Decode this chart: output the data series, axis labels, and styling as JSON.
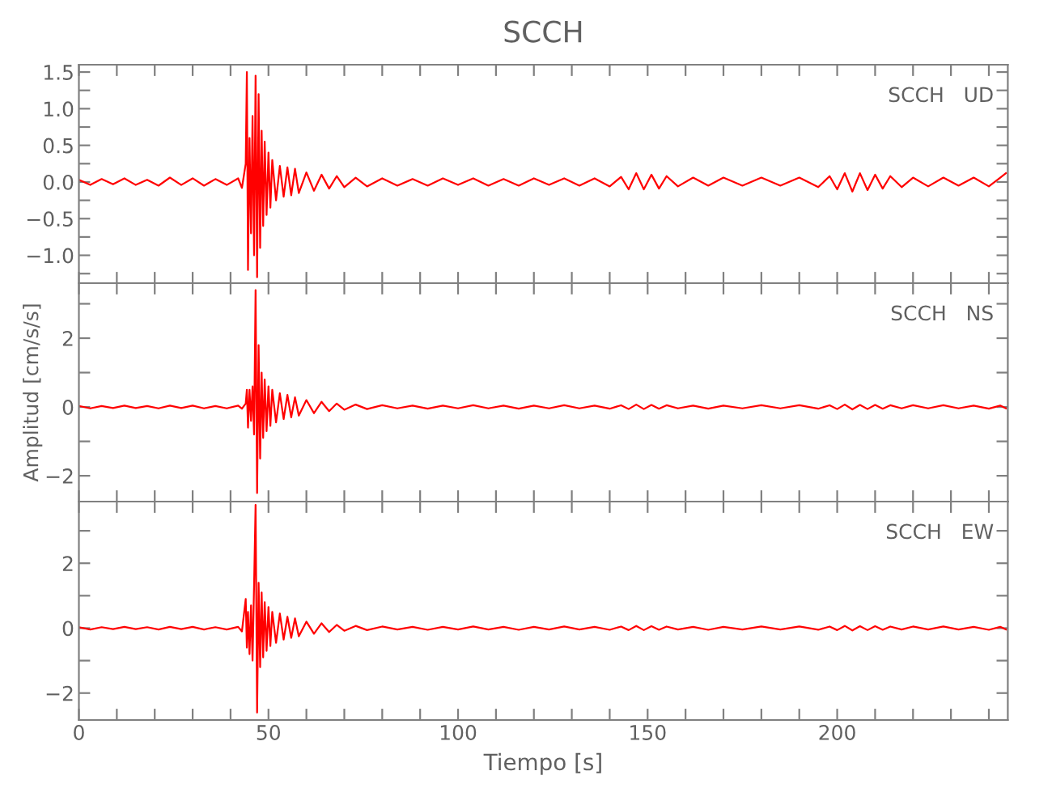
{
  "chart_data": [
    {
      "type": "line",
      "title": "SCCH",
      "annotations": [
        "SCCH   UD"
      ],
      "tick_labels": "y",
      "xlim": [
        0,
        245
      ],
      "xticks": [
        {
          "value": 0,
          "label": null
        },
        {
          "value": 10,
          "label": null
        },
        {
          "value": 20,
          "label": null
        },
        {
          "value": 30,
          "label": null
        },
        {
          "value": 40,
          "label": null
        },
        {
          "value": 50,
          "label": null
        },
        {
          "value": 60,
          "label": null
        },
        {
          "value": 70,
          "label": null
        },
        {
          "value": 80,
          "label": null
        },
        {
          "value": 90,
          "label": null
        },
        {
          "value": 100,
          "label": null
        },
        {
          "value": 110,
          "label": null
        },
        {
          "value": 120,
          "label": null
        },
        {
          "value": 130,
          "label": null
        },
        {
          "value": 140,
          "label": null
        },
        {
          "value": 150,
          "label": null
        },
        {
          "value": 160,
          "label": null
        },
        {
          "value": 170,
          "label": null
        },
        {
          "value": 180,
          "label": null
        },
        {
          "value": 190,
          "label": null
        },
        {
          "value": 200,
          "label": null
        },
        {
          "value": 210,
          "label": null
        },
        {
          "value": 220,
          "label": null
        },
        {
          "value": 230,
          "label": null
        },
        {
          "value": 240,
          "label": null
        }
      ],
      "ylim": [
        -1.38,
        1.6
      ],
      "yticks": [
        {
          "value": -1.25,
          "label": null
        },
        {
          "value": -1.0,
          "label": "−1.0"
        },
        {
          "value": -0.75,
          "label": null
        },
        {
          "value": -0.5,
          "label": "−0.5"
        },
        {
          "value": -0.25,
          "label": null
        },
        {
          "value": 0.0,
          "label": "0.0"
        },
        {
          "value": 0.25,
          "label": null
        },
        0.5,
        {
          "value": 0.75,
          "label": null
        },
        {
          "value": 1.0,
          "label": "1.0"
        },
        {
          "value": 1.25,
          "label": null
        },
        1.5
      ],
      "series": [
        {
          "color": "#ff0000",
          "x": [
            0,
            3,
            6,
            9,
            12,
            15,
            18,
            21,
            24,
            27,
            30,
            33,
            36,
            39,
            42,
            43,
            44,
            44.3,
            44.6,
            45,
            45.4,
            45.8,
            46.2,
            46.6,
            47,
            47.4,
            47.8,
            48.2,
            48.6,
            49,
            49.5,
            50,
            50.5,
            51,
            52,
            53,
            54,
            55,
            56,
            57,
            58,
            60,
            62,
            64,
            66,
            68,
            70,
            73,
            76,
            80,
            84,
            88,
            92,
            96,
            100,
            104,
            108,
            112,
            116,
            120,
            124,
            128,
            132,
            136,
            140,
            143,
            145,
            147,
            149,
            151,
            153,
            155,
            158,
            162,
            166,
            170,
            175,
            180,
            185,
            190,
            195,
            198,
            200,
            202,
            204,
            206,
            208,
            210,
            212,
            214,
            217,
            220,
            224,
            228,
            232,
            236,
            240,
            243,
            244.5
          ],
          "values": [
            0.03,
            -0.04,
            0.04,
            -0.03,
            0.05,
            -0.04,
            0.03,
            -0.05,
            0.06,
            -0.04,
            0.05,
            -0.05,
            0.04,
            -0.04,
            0.05,
            -0.08,
            0.25,
            1.5,
            -1.2,
            0.6,
            -0.7,
            0.9,
            -1.0,
            1.45,
            -1.3,
            1.2,
            -0.9,
            0.7,
            -0.6,
            0.55,
            -0.45,
            0.4,
            -0.35,
            0.3,
            -0.25,
            0.22,
            -0.2,
            0.2,
            -0.18,
            0.18,
            -0.15,
            0.13,
            -0.12,
            0.1,
            -0.09,
            0.08,
            -0.07,
            0.06,
            -0.06,
            0.05,
            -0.05,
            0.04,
            -0.05,
            0.05,
            -0.04,
            0.05,
            -0.05,
            0.04,
            -0.05,
            0.05,
            -0.04,
            0.05,
            -0.05,
            0.05,
            -0.06,
            0.07,
            -0.1,
            0.12,
            -0.1,
            0.1,
            -0.09,
            0.08,
            -0.06,
            0.06,
            -0.05,
            0.06,
            -0.05,
            0.06,
            -0.05,
            0.06,
            -0.07,
            0.08,
            -0.1,
            0.12,
            -0.13,
            0.12,
            -0.11,
            0.1,
            -0.09,
            0.08,
            -0.07,
            0.06,
            -0.06,
            0.06,
            -0.05,
            0.06,
            -0.06,
            0.06,
            0.12
          ]
        }
      ]
    },
    {
      "type": "line",
      "ylabel": "Amplitud [cm/s/s]",
      "annotations": [
        "SCCH   NS"
      ],
      "tick_labels": "y",
      "xlim": [
        0,
        245
      ],
      "xticks": [
        {
          "value": 0,
          "label": null
        },
        {
          "value": 10,
          "label": null
        },
        {
          "value": 20,
          "label": null
        },
        {
          "value": 30,
          "label": null
        },
        {
          "value": 40,
          "label": null
        },
        {
          "value": 50,
          "label": null
        },
        {
          "value": 60,
          "label": null
        },
        {
          "value": 70,
          "label": null
        },
        {
          "value": 80,
          "label": null
        },
        {
          "value": 90,
          "label": null
        },
        {
          "value": 100,
          "label": null
        },
        {
          "value": 110,
          "label": null
        },
        {
          "value": 120,
          "label": null
        },
        {
          "value": 130,
          "label": null
        },
        {
          "value": 140,
          "label": null
        },
        {
          "value": 150,
          "label": null
        },
        {
          "value": 160,
          "label": null
        },
        {
          "value": 170,
          "label": null
        },
        {
          "value": 180,
          "label": null
        },
        {
          "value": 190,
          "label": null
        },
        {
          "value": 200,
          "label": null
        },
        {
          "value": 210,
          "label": null
        },
        {
          "value": 220,
          "label": null
        },
        {
          "value": 230,
          "label": null
        },
        {
          "value": 240,
          "label": null
        }
      ],
      "ylim": [
        -2.75,
        3.6
      ],
      "yticks": [
        {
          "value": -2,
          "label": "−2"
        },
        {
          "value": -1,
          "label": null
        },
        0,
        {
          "value": 1,
          "label": null
        },
        2,
        {
          "value": 3,
          "label": null
        }
      ],
      "series": [
        {
          "color": "#ff0000",
          "x": [
            0,
            3,
            6,
            9,
            12,
            15,
            18,
            21,
            24,
            27,
            30,
            33,
            36,
            39,
            42,
            43,
            44,
            44.3,
            44.6,
            45,
            45.4,
            45.8,
            46.2,
            46.6,
            47,
            47.4,
            47.8,
            48.2,
            48.6,
            49,
            49.5,
            50,
            50.5,
            51,
            52,
            53,
            54,
            55,
            56,
            57,
            58,
            60,
            62,
            64,
            66,
            68,
            70,
            73,
            76,
            80,
            84,
            88,
            92,
            96,
            100,
            104,
            108,
            112,
            116,
            120,
            124,
            128,
            132,
            136,
            140,
            143,
            145,
            147,
            149,
            151,
            153,
            155,
            158,
            162,
            166,
            170,
            175,
            180,
            185,
            190,
            195,
            198,
            200,
            202,
            204,
            206,
            208,
            210,
            212,
            214,
            217,
            220,
            224,
            228,
            232,
            236,
            240,
            243,
            244.5
          ],
          "values": [
            0.03,
            -0.04,
            0.03,
            -0.03,
            0.04,
            -0.03,
            0.03,
            -0.04,
            0.04,
            -0.03,
            0.04,
            -0.04,
            0.03,
            -0.04,
            0.04,
            -0.05,
            0.1,
            0.5,
            -0.6,
            0.5,
            -0.4,
            0.6,
            -0.8,
            3.4,
            -2.5,
            1.8,
            -1.5,
            1.0,
            -0.9,
            0.8,
            -0.7,
            0.6,
            -0.55,
            0.5,
            -0.45,
            0.4,
            -0.35,
            0.35,
            -0.3,
            0.28,
            -0.25,
            0.2,
            -0.18,
            0.15,
            -0.12,
            0.1,
            -0.08,
            0.07,
            -0.06,
            0.05,
            -0.04,
            0.04,
            -0.05,
            0.04,
            -0.04,
            0.05,
            -0.04,
            0.04,
            -0.05,
            0.04,
            -0.04,
            0.05,
            -0.04,
            0.04,
            -0.05,
            0.05,
            -0.06,
            0.07,
            -0.06,
            0.06,
            -0.05,
            0.05,
            -0.04,
            0.04,
            -0.05,
            0.04,
            -0.04,
            0.05,
            -0.04,
            0.05,
            -0.05,
            0.05,
            -0.06,
            0.07,
            -0.07,
            0.06,
            -0.06,
            0.06,
            -0.05,
            0.05,
            -0.04,
            0.05,
            -0.04,
            0.05,
            -0.04,
            0.04,
            -0.05,
            0.04,
            -0.04
          ]
        }
      ]
    },
    {
      "type": "line",
      "xlabel": "Tiempo [s]",
      "annotations": [
        "SCCH   EW"
      ],
      "xlim": [
        0,
        245
      ],
      "xticks": [
        0,
        {
          "value": 10,
          "label": null
        },
        {
          "value": 20,
          "label": null
        },
        {
          "value": 30,
          "label": null
        },
        {
          "value": 40,
          "label": null
        },
        50,
        {
          "value": 60,
          "label": null
        },
        {
          "value": 70,
          "label": null
        },
        {
          "value": 80,
          "label": null
        },
        {
          "value": 90,
          "label": null
        },
        100,
        {
          "value": 110,
          "label": null
        },
        {
          "value": 120,
          "label": null
        },
        {
          "value": 130,
          "label": null
        },
        {
          "value": 140,
          "label": null
        },
        150,
        {
          "value": 160,
          "label": null
        },
        {
          "value": 170,
          "label": null
        },
        {
          "value": 180,
          "label": null
        },
        {
          "value": 190,
          "label": null
        },
        200,
        {
          "value": 210,
          "label": null
        },
        {
          "value": 220,
          "label": null
        },
        {
          "value": 230,
          "label": null
        },
        {
          "value": 240,
          "label": null
        }
      ],
      "ylim": [
        -2.83,
        3.9
      ],
      "yticks": [
        {
          "value": -2,
          "label": "−2"
        },
        {
          "value": -1,
          "label": null
        },
        0,
        {
          "value": 1,
          "label": null
        },
        2,
        {
          "value": 3,
          "label": null
        }
      ],
      "series": [
        {
          "color": "#ff0000",
          "x": [
            0,
            3,
            6,
            9,
            12,
            15,
            18,
            21,
            24,
            27,
            30,
            33,
            36,
            39,
            42,
            43,
            44,
            44.3,
            44.6,
            45,
            45.4,
            45.8,
            46.2,
            46.6,
            47,
            47.4,
            47.8,
            48.2,
            48.6,
            49,
            49.5,
            50,
            50.5,
            51,
            52,
            53,
            54,
            55,
            56,
            57,
            58,
            60,
            62,
            64,
            66,
            68,
            70,
            73,
            76,
            80,
            84,
            88,
            92,
            96,
            100,
            104,
            108,
            112,
            116,
            120,
            124,
            128,
            132,
            136,
            140,
            143,
            145,
            147,
            149,
            151,
            153,
            155,
            158,
            162,
            166,
            170,
            175,
            180,
            185,
            190,
            195,
            198,
            200,
            202,
            204,
            206,
            208,
            210,
            212,
            214,
            217,
            220,
            224,
            228,
            232,
            236,
            240,
            243,
            244.5
          ],
          "values": [
            0.03,
            -0.04,
            0.03,
            -0.03,
            0.04,
            -0.03,
            0.03,
            -0.04,
            0.04,
            -0.03,
            0.04,
            -0.04,
            0.03,
            -0.04,
            0.04,
            -0.1,
            0.9,
            -0.6,
            0.5,
            -0.8,
            0.7,
            -1.0,
            1.3,
            3.8,
            -2.6,
            1.4,
            -1.2,
            1.1,
            -0.9,
            0.8,
            -0.7,
            0.65,
            -0.55,
            0.5,
            -0.45,
            0.45,
            -0.35,
            0.35,
            -0.3,
            0.3,
            -0.25,
            0.2,
            -0.17,
            0.15,
            -0.12,
            0.1,
            -0.08,
            0.07,
            -0.06,
            0.05,
            -0.04,
            0.04,
            -0.05,
            0.04,
            -0.04,
            0.05,
            -0.04,
            0.04,
            -0.05,
            0.04,
            -0.04,
            0.05,
            -0.04,
            0.04,
            -0.05,
            0.05,
            -0.06,
            0.07,
            -0.06,
            0.06,
            -0.05,
            0.05,
            -0.04,
            0.04,
            -0.05,
            0.04,
            -0.04,
            0.05,
            -0.04,
            0.05,
            -0.05,
            0.05,
            -0.06,
            0.07,
            -0.07,
            0.06,
            -0.06,
            0.06,
            -0.05,
            0.05,
            -0.04,
            0.05,
            -0.04,
            0.05,
            -0.04,
            0.04,
            -0.05,
            0.04,
            -0.04
          ]
        }
      ]
    }
  ]
}
